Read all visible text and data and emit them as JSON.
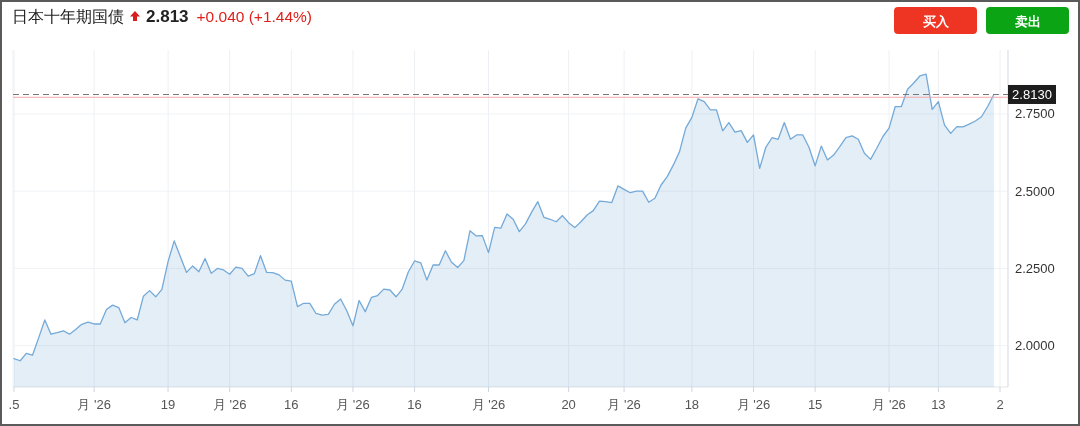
{
  "chart_data": {
    "type": "area",
    "title": "日本十年期国债",
    "subtitle": "2.813",
    "annotations": [
      "+0.040 (+1.44%)",
      "买入",
      "卖出"
    ],
    "categories": [
      ".5",
      null,
      null,
      null,
      null,
      null,
      null,
      null,
      null,
      null,
      null,
      null,
      null,
      "月 '26",
      null,
      null,
      null,
      null,
      null,
      null,
      null,
      null,
      null,
      null,
      null,
      "19",
      null,
      null,
      null,
      null,
      null,
      null,
      null,
      null,
      null,
      "月 '26",
      null,
      null,
      null,
      null,
      null,
      null,
      null,
      null,
      null,
      "16",
      null,
      null,
      null,
      null,
      null,
      null,
      null,
      null,
      null,
      "月 '26",
      null,
      null,
      null,
      null,
      null,
      null,
      null,
      null,
      null,
      "16",
      null,
      null,
      null,
      null,
      null,
      null,
      null,
      null,
      null,
      null,
      null,
      "月 '26",
      null,
      null,
      null,
      null,
      null,
      null,
      null,
      null,
      null,
      null,
      null,
      null,
      "20",
      null,
      null,
      null,
      null,
      null,
      null,
      null,
      null,
      "月 '26",
      null,
      null,
      null,
      null,
      null,
      null,
      null,
      null,
      null,
      null,
      "18",
      null,
      null,
      null,
      null,
      null,
      null,
      null,
      null,
      null,
      "月 '26",
      null,
      null,
      null,
      null,
      null,
      null,
      null,
      null,
      null,
      "15",
      null,
      null,
      null,
      null,
      null,
      null,
      null,
      null,
      null,
      null,
      null,
      "月 '26",
      null,
      null,
      null,
      null,
      null,
      null,
      null,
      "13",
      null,
      null,
      null,
      null,
      null,
      null,
      null,
      null,
      null,
      "2"
    ],
    "series": [
      {
        "color": "#74a9d8",
        "values": [
          1.958,
          1.951,
          1.975,
          1.969,
          2.025,
          2.083,
          2.037,
          2.042,
          2.048,
          2.037,
          2.052,
          2.069,
          2.076,
          2.07,
          2.07,
          2.117,
          2.131,
          2.123,
          2.074,
          2.091,
          2.083,
          2.16,
          2.178,
          2.158,
          2.182,
          2.272,
          2.339,
          2.288,
          2.237,
          2.258,
          2.239,
          2.282,
          2.234,
          2.25,
          2.245,
          2.231,
          2.254,
          2.25,
          2.225,
          2.233,
          2.291,
          2.237,
          2.236,
          2.229,
          2.212,
          2.209,
          2.126,
          2.137,
          2.137,
          2.104,
          2.099,
          2.101,
          2.134,
          2.151,
          2.113,
          2.064,
          2.146,
          2.11,
          2.156,
          2.162,
          2.183,
          2.18,
          2.158,
          2.183,
          2.239,
          2.274,
          2.268,
          2.212,
          2.261,
          2.261,
          2.307,
          2.27,
          2.253,
          2.275,
          2.372,
          2.355,
          2.356,
          2.301,
          2.383,
          2.38,
          2.426,
          2.409,
          2.369,
          2.394,
          2.432,
          2.466,
          2.415,
          2.409,
          2.401,
          2.421,
          2.398,
          2.382,
          2.401,
          2.423,
          2.437,
          2.468,
          2.466,
          2.463,
          2.517,
          2.506,
          2.495,
          2.5,
          2.5,
          2.464,
          2.477,
          2.52,
          2.547,
          2.585,
          2.628,
          2.704,
          2.739,
          2.799,
          2.79,
          2.763,
          2.763,
          2.695,
          2.722,
          2.691,
          2.696,
          2.658,
          2.682,
          2.574,
          2.642,
          2.673,
          2.668,
          2.722,
          2.668,
          2.682,
          2.682,
          2.642,
          2.582,
          2.646,
          2.601,
          2.617,
          2.644,
          2.673,
          2.679,
          2.668,
          2.623,
          2.603,
          2.639,
          2.677,
          2.704,
          2.774,
          2.774,
          2.83,
          2.85,
          2.873,
          2.879,
          2.765,
          2.79,
          2.714,
          2.687,
          2.709,
          2.708,
          2.717,
          2.727,
          2.741,
          2.774,
          2.813,
          null
        ]
      }
    ],
    "ylim": [
      1.866,
      2.957
    ],
    "yticks": [
      {
        "value": 2,
        "label": "2.0000"
      },
      {
        "value": 2.25,
        "label": "2.2500"
      },
      {
        "value": 2.5,
        "label": "2.5000"
      },
      {
        "value": 2.75,
        "label": "2.7500"
      }
    ],
    "grid": true,
    "ref_lines": [
      {
        "axis": "y",
        "value": 2.813,
        "label": "2.8130",
        "color": "#777777",
        "line_style": "dashed"
      },
      {
        "axis": "y",
        "value": 2.804,
        "color": "#f2a8a8",
        "line_style": "solid"
      }
    ]
  }
}
